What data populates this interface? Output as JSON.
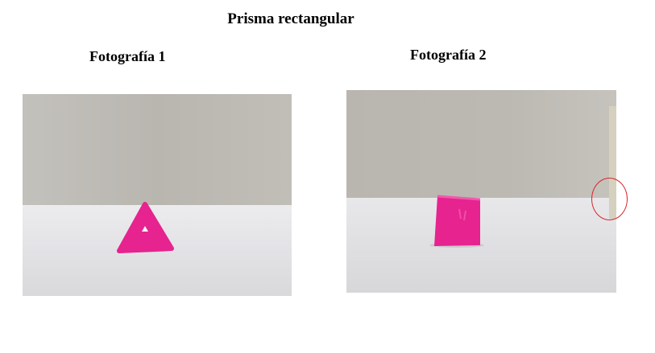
{
  "document": {
    "title": "Prisma rectangular",
    "photos": [
      {
        "caption": "Fotografía 1"
      },
      {
        "caption": "Fotografía 2"
      }
    ]
  },
  "colors": {
    "wall": "#b8b5ae",
    "floor": "#e3e3e6",
    "object": "#e6208e",
    "marker": "#d9262a"
  }
}
